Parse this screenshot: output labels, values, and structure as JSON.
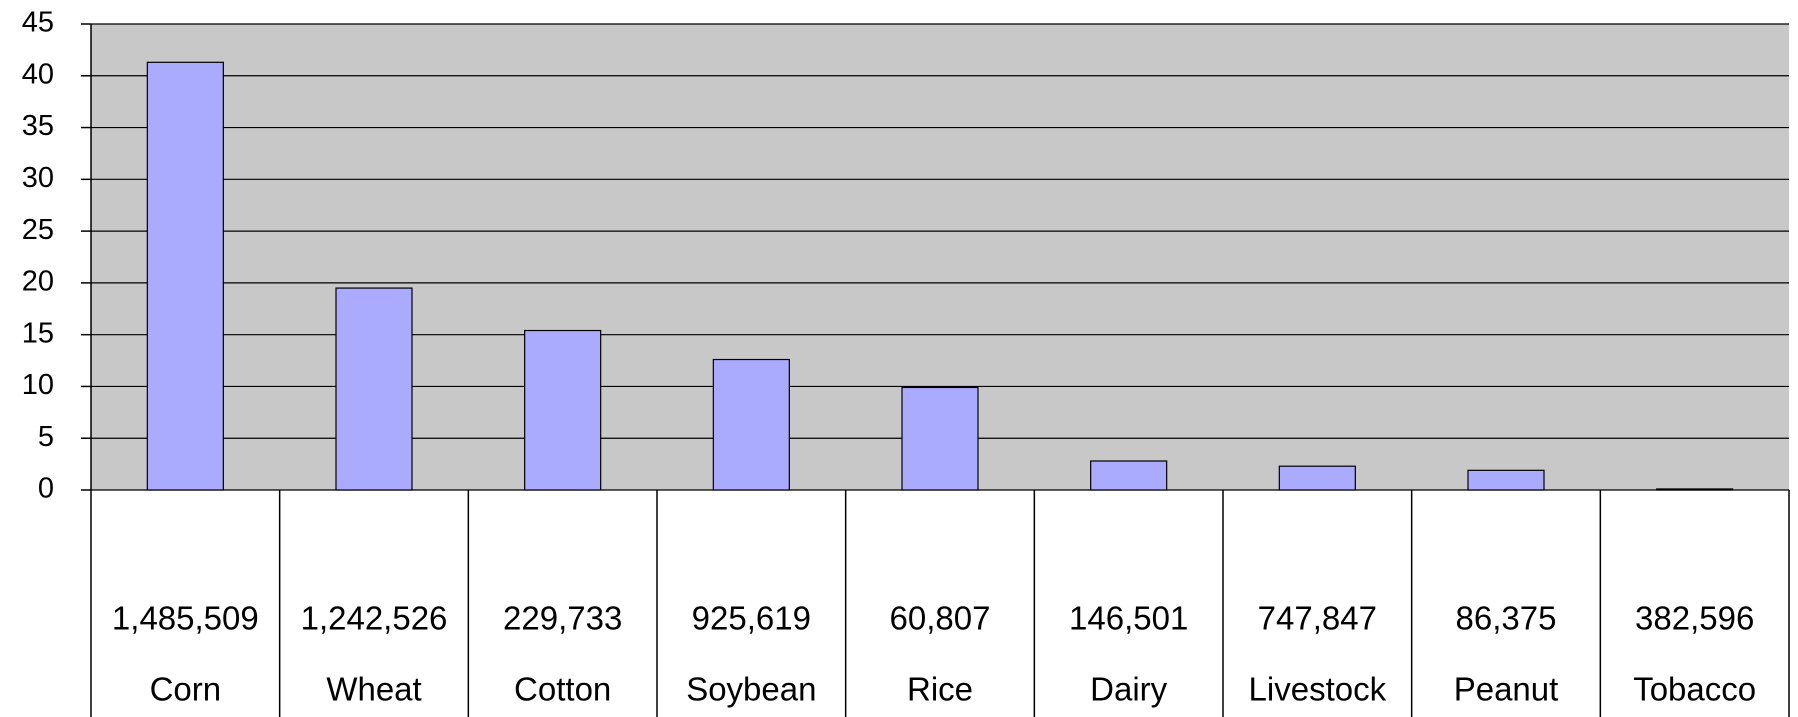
{
  "chart_data": {
    "type": "bar",
    "categories": [
      "Corn",
      "Wheat",
      "Cotton",
      "Soybean",
      "Rice",
      "Dairy",
      "Livestock",
      "Peanut",
      "Tobacco"
    ],
    "category_counts": [
      "1,485,509",
      "1,242,526",
      "229,733",
      "925,619",
      "60,807",
      "146,501",
      "747,847",
      "86,375",
      "382,596"
    ],
    "values": [
      41.3,
      19.5,
      15.4,
      12.6,
      9.9,
      2.8,
      2.3,
      1.9,
      0.1
    ],
    "color": "#aaaaff",
    "ylim": [
      0,
      45
    ],
    "yticks": [
      0,
      5,
      10,
      15,
      20,
      25,
      30,
      35,
      40,
      45
    ],
    "grid": true
  }
}
